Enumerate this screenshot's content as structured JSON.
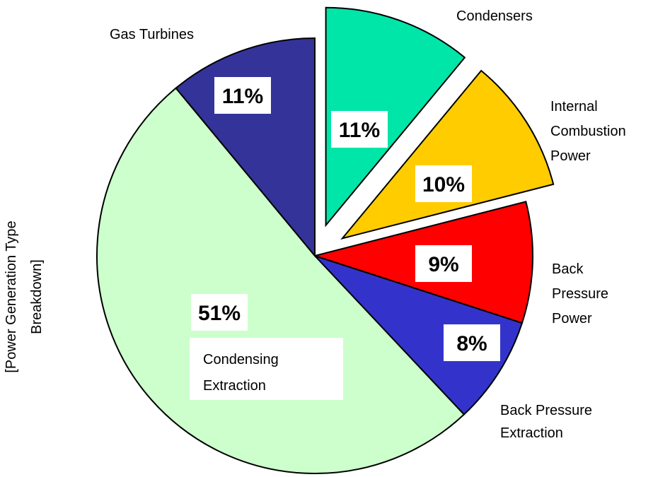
{
  "chart_data": {
    "type": "pie",
    "axis_title": "[Power Generation Type Breakdown]",
    "categories": [
      "Condensers",
      "Internal Combustion Power",
      "Back Pressure Power",
      "Back Pressure Extraction",
      "Condensing Extraction",
      "Gas Turbines"
    ],
    "values": [
      11,
      10,
      9,
      8,
      51,
      11
    ],
    "value_labels": [
      "11%",
      "10%",
      "9%",
      "8%",
      "51%",
      "11%"
    ],
    "colors": [
      "#00e5a8",
      "#ffcc00",
      "#ff0000",
      "#3333cc",
      "#ccffcc",
      "#333399"
    ],
    "exploded": [
      true,
      true,
      false,
      false,
      false,
      false
    ]
  }
}
